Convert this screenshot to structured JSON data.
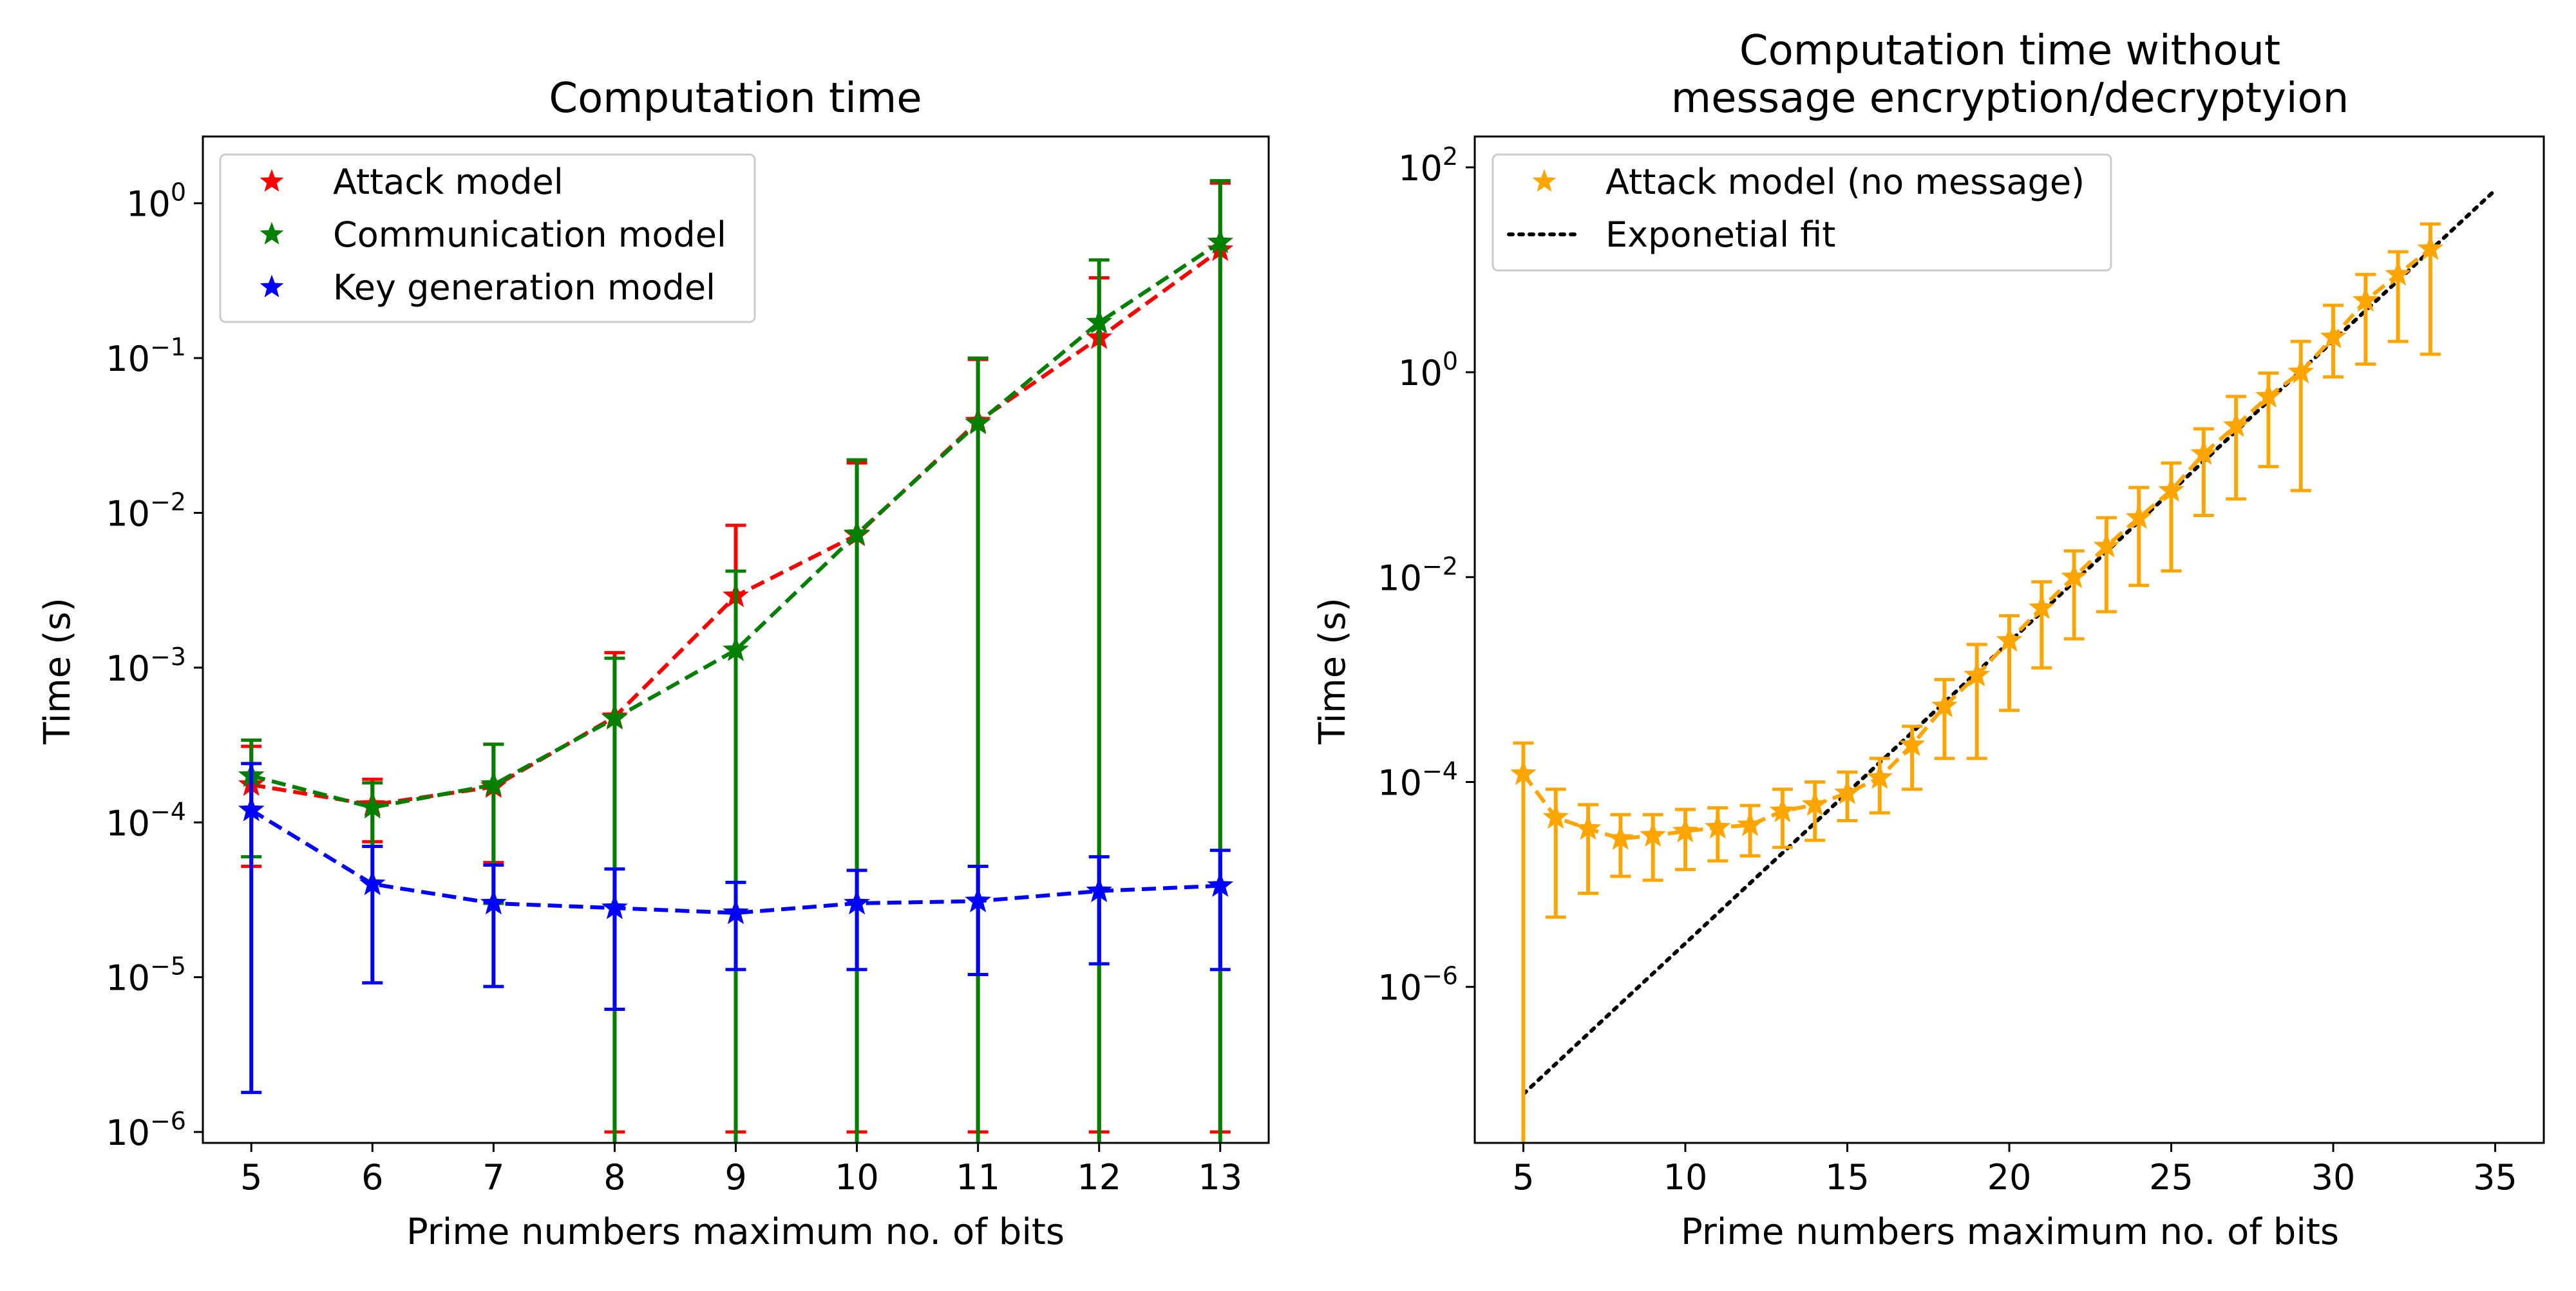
{
  "chart_data": [
    {
      "type": "line",
      "title": "Computation time",
      "xlabel": "Prime numbers maximum no. of bits",
      "ylabel": "Time (s)",
      "yscale": "log",
      "xlim": [
        4.6,
        13.4
      ],
      "ylim": [
        8.5e-07,
        2.7
      ],
      "xticks": [
        5,
        6,
        7,
        8,
        9,
        10,
        11,
        12,
        13
      ],
      "yticks": [
        {
          "value": 1e-06,
          "mant": "10",
          "exp": "−6"
        },
        {
          "value": 1e-05,
          "mant": "10",
          "exp": "−5"
        },
        {
          "value": 0.0001,
          "mant": "10",
          "exp": "−4"
        },
        {
          "value": 0.001,
          "mant": "10",
          "exp": "−3"
        },
        {
          "value": 0.01,
          "mant": "10",
          "exp": "−2"
        },
        {
          "value": 0.1,
          "mant": "10",
          "exp": "−1"
        },
        {
          "value": 1,
          "mant": "10",
          "exp": "0"
        }
      ],
      "legend": {
        "position": "upper left"
      },
      "x": [
        5,
        6,
        7,
        8,
        9,
        10,
        11,
        12,
        13
      ],
      "series": [
        {
          "name": "Attack model",
          "color": "#ff0000",
          "values": [
            0.000175,
            0.00013,
            0.00017,
            0.00048,
            0.0029,
            0.0072,
            0.039,
            0.135,
            0.5
          ],
          "err_low": [
            5.2e-05,
            7.5e-05,
            5.5e-05,
            1e-06,
            1e-06,
            1e-06,
            1e-06,
            1e-06,
            1e-06
          ],
          "err_high": [
            0.00031,
            0.00019,
            0.00032,
            0.00125,
            0.0083,
            0.021,
            0.098,
            0.33,
            1.35
          ]
        },
        {
          "name": "Communication model",
          "color": "#008000",
          "values": [
            0.0002,
            0.000125,
            0.000175,
            0.00047,
            0.0013,
            0.0073,
            0.038,
            0.17,
            0.56
          ],
          "err_low": [
            6e-05,
            7e-05,
            3e-05,
            5e-07,
            5e-07,
            5e-07,
            5e-07,
            5e-07,
            5e-07
          ],
          "err_high": [
            0.00034,
            0.00018,
            0.00032,
            0.00115,
            0.0042,
            0.022,
            0.1,
            0.43,
            1.4
          ]
        },
        {
          "name": "Key generation model",
          "color": "#0000ff",
          "values": [
            0.00012,
            4e-05,
            3e-05,
            2.8e-05,
            2.6e-05,
            3e-05,
            3.1e-05,
            3.6e-05,
            3.9e-05
          ],
          "err_low": [
            1.8e-06,
            9.2e-06,
            8.7e-06,
            6.2e-06,
            1.12e-05,
            1.12e-05,
            1.04e-05,
            1.22e-05,
            1.12e-05
          ],
          "err_high": [
            0.00024,
            7e-05,
            5.3e-05,
            5e-05,
            4.1e-05,
            4.9e-05,
            5.2e-05,
            6e-05,
            6.6e-05
          ]
        }
      ]
    },
    {
      "type": "line",
      "title_lines": [
        "Computation time without",
        "message encryption/decryptyion"
      ],
      "xlabel": "Prime numbers maximum no. of bits",
      "ylabel": "Time (s)",
      "yscale": "log",
      "xlim": [
        3.5,
        36.5
      ],
      "ylim": [
        3e-08,
        200
      ],
      "xticks": [
        5,
        10,
        15,
        20,
        25,
        30,
        35
      ],
      "yticks": [
        {
          "value": 1e-06,
          "mant": "10",
          "exp": "−6"
        },
        {
          "value": 0.0001,
          "mant": "10",
          "exp": "−4"
        },
        {
          "value": 0.01,
          "mant": "10",
          "exp": "−2"
        },
        {
          "value": 1,
          "mant": "10",
          "exp": "0"
        },
        {
          "value": 100,
          "mant": "10",
          "exp": "2"
        }
      ],
      "legend": {
        "position": "upper left"
      },
      "x": [
        5,
        6,
        7,
        8,
        9,
        10,
        11,
        12,
        13,
        14,
        15,
        16,
        17,
        18,
        19,
        20,
        21,
        22,
        23,
        24,
        25,
        26,
        27,
        28,
        29,
        30,
        31,
        32,
        33
      ],
      "series": [
        {
          "name": "Attack model (no message)",
          "color": "#ffa500",
          "values": [
            0.00012,
            4.5e-05,
            3.5e-05,
            2.8e-05,
            3e-05,
            3.3e-05,
            3.6e-05,
            3.8e-05,
            5.2e-05,
            6e-05,
            7.8e-05,
            0.00011,
            0.00023,
            0.00055,
            0.0011,
            0.0024,
            0.005,
            0.01,
            0.02,
            0.038,
            0.07,
            0.16,
            0.3,
            0.58,
            1.0,
            2.2,
            5.0,
            9.0,
            16.0
          ],
          "err_low": [
            2e-08,
            4.8e-06,
            8.2e-06,
            1.2e-05,
            1.1e-05,
            1.4e-05,
            1.7e-05,
            1.9e-05,
            2.3e-05,
            2.7e-05,
            4.2e-05,
            5e-05,
            8.5e-05,
            0.00017,
            0.00017,
            0.0005,
            0.0013,
            0.0025,
            0.0046,
            0.0083,
            0.0115,
            0.04,
            0.058,
            0.12,
            0.07,
            0.9,
            1.2,
            2.0,
            1.5
          ],
          "err_high": [
            0.00024,
            8.5e-05,
            6e-05,
            4.8e-05,
            4.8e-05,
            5.4e-05,
            5.6e-05,
            5.9e-05,
            8.5e-05,
            0.0001,
            0.000125,
            0.00017,
            0.00035,
            0.001,
            0.0022,
            0.0042,
            0.009,
            0.018,
            0.038,
            0.075,
            0.13,
            0.28,
            0.58,
            0.98,
            2.0,
            4.5,
            9.0,
            15.0,
            28.0
          ]
        }
      ],
      "fit": {
        "name": "Exponetial fit",
        "color": "#000000",
        "x": [
          5,
          35
        ],
        "y": [
          9e-08,
          60
        ]
      }
    }
  ]
}
